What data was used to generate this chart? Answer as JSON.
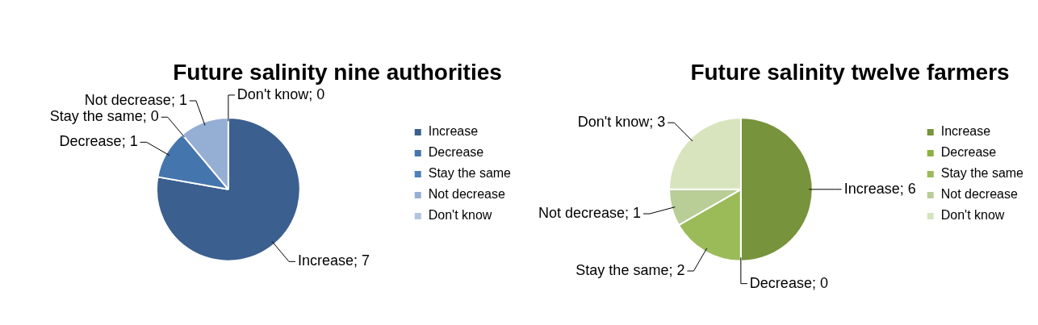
{
  "chart_data": [
    {
      "type": "pie",
      "title": "Future salinity nine authorities",
      "categories": [
        "Increase",
        "Decrease",
        "Stay the same",
        "Not decrease",
        "Don't know"
      ],
      "values": [
        7,
        1,
        0,
        1,
        0
      ],
      "value_labels": [
        "Increase; 7",
        "Decrease; 1",
        "Stay the same; 0",
        "Not decrease; 1",
        "Don't know; 0"
      ],
      "colors": [
        "#3b5f8f",
        "#4575ad",
        "#4f81bd",
        "#95aed4",
        "#b3c4e0"
      ],
      "legend": "right"
    },
    {
      "type": "pie",
      "title": "Future salinity twelve farmers",
      "categories": [
        "Increase",
        "Decrease",
        "Stay the same",
        "Not decrease",
        "Don't know"
      ],
      "values": [
        6,
        0,
        2,
        1,
        3
      ],
      "value_labels": [
        "Increase; 6",
        "Decrease; 0",
        "Stay the same; 2",
        "Not decrease; 1",
        "Don't know; 3"
      ],
      "colors": [
        "#77933c",
        "#8db040",
        "#9bbb59",
        "#b9cd96",
        "#d7e4bd"
      ],
      "legend": "right"
    }
  ]
}
